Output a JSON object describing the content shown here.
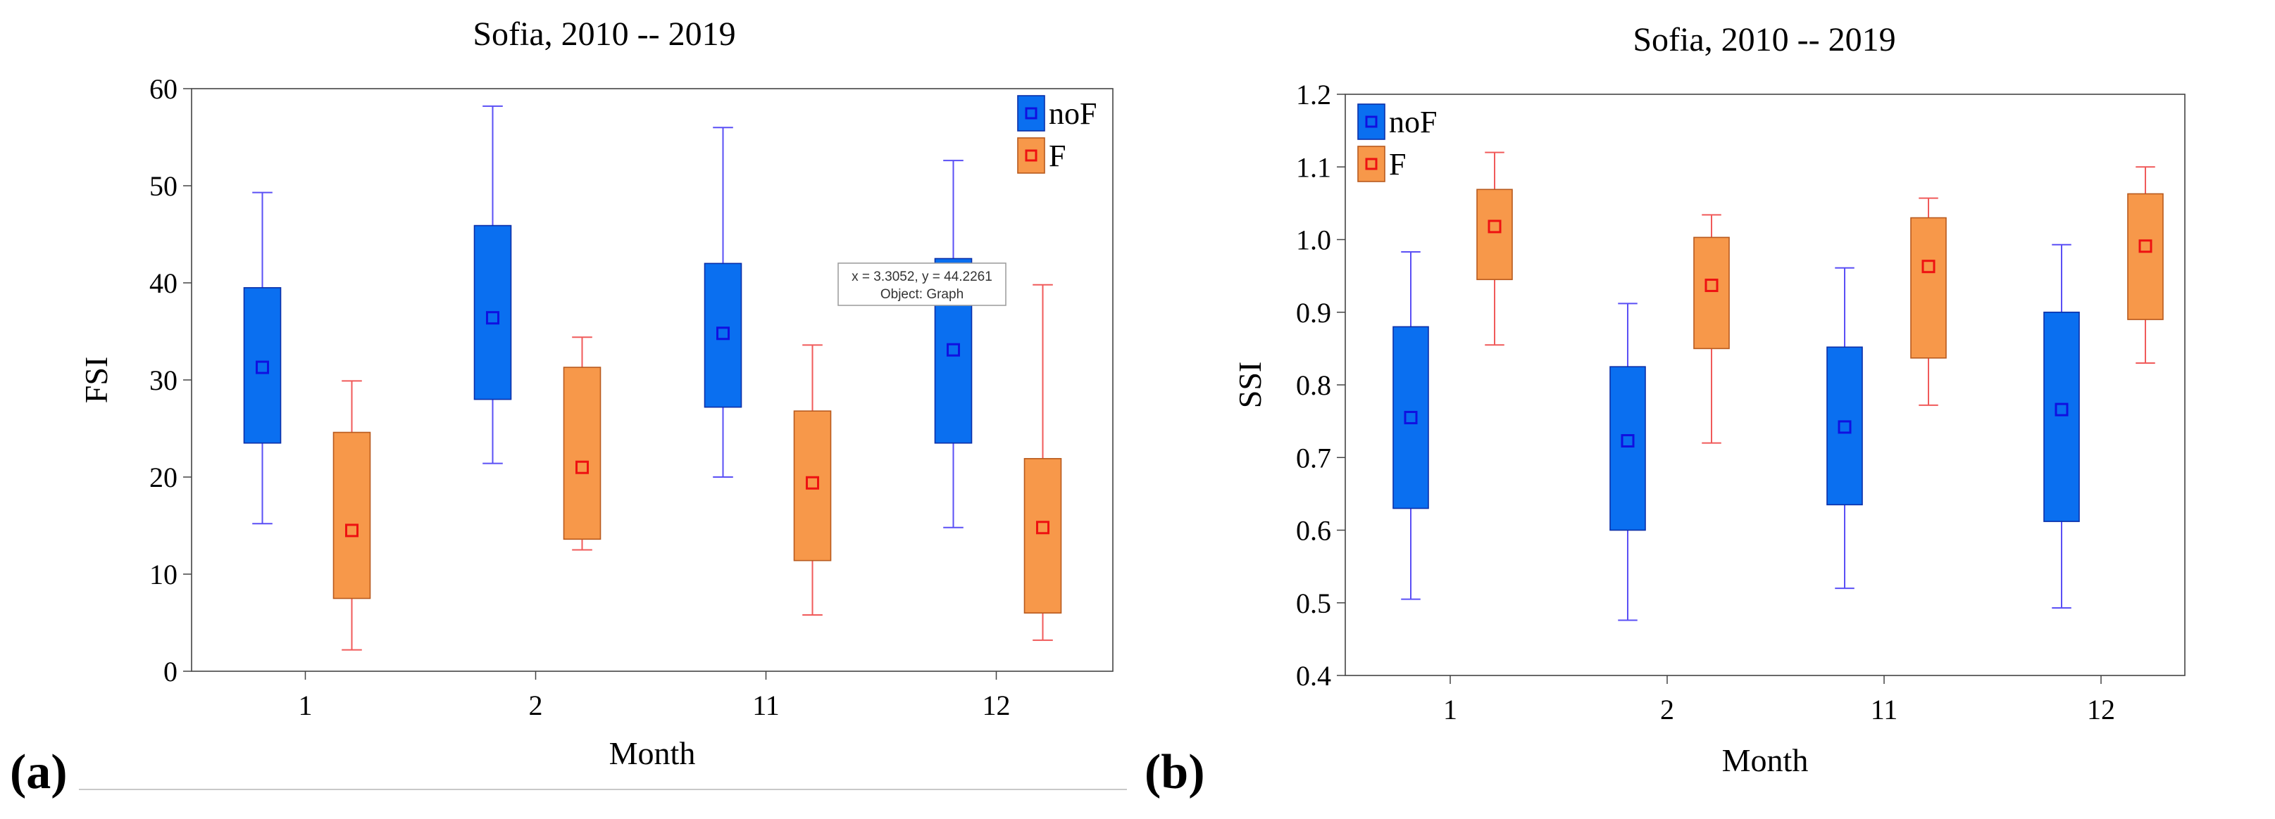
{
  "colors": {
    "noF_fill": "#0a6ff0",
    "noF_edge": "#0b2fa8",
    "noF_whisker": "#5a4ff5",
    "noF_marker": "#1010e0",
    "F_fill": "#f7984a",
    "F_edge": "#b85a1e",
    "F_whisker": "#f05a5a",
    "F_marker": "#ee1111"
  },
  "panels": {
    "a": "(a)",
    "b": "(b)"
  },
  "tooltip": {
    "line1": "x = 3.3052, y = 44.2261",
    "line2": "Object: Graph"
  },
  "chart_data": [
    {
      "id": "a",
      "type": "box",
      "title": "Sofia, 2010 -- 2019",
      "xlabel": "Month",
      "ylabel": "FSI",
      "categories": [
        "1",
        "2",
        "11",
        "12"
      ],
      "ylim": [
        0,
        60
      ],
      "yticks": [
        "0",
        "10",
        "20",
        "30",
        "40",
        "50",
        "60"
      ],
      "legend_position": "top-right",
      "series": [
        {
          "name": "noF",
          "boxes": [
            {
              "min": 15.2,
              "q1": 23.5,
              "mean": 31.3,
              "q3": 39.5,
              "max": 49.3
            },
            {
              "min": 21.4,
              "q1": 28.0,
              "mean": 36.4,
              "q3": 45.9,
              "max": 58.2
            },
            {
              "min": 20.0,
              "q1": 27.2,
              "mean": 34.8,
              "q3": 42.0,
              "max": 56.0
            },
            {
              "min": 14.8,
              "q1": 23.5,
              "mean": 33.1,
              "q3": 42.5,
              "max": 52.6
            }
          ]
        },
        {
          "name": "F",
          "boxes": [
            {
              "min": 2.2,
              "q1": 7.5,
              "mean": 14.5,
              "q3": 24.6,
              "max": 29.9
            },
            {
              "min": 12.5,
              "q1": 13.6,
              "mean": 21.0,
              "q3": 31.3,
              "max": 34.4
            },
            {
              "min": 5.8,
              "q1": 11.4,
              "mean": 19.4,
              "q3": 26.8,
              "max": 33.6
            },
            {
              "min": 3.2,
              "q1": 6.0,
              "mean": 14.8,
              "q3": 21.9,
              "max": 39.8
            }
          ]
        }
      ]
    },
    {
      "id": "b",
      "type": "box",
      "title": "Sofia, 2010 -- 2019",
      "xlabel": "Month",
      "ylabel": "SSI",
      "categories": [
        "1",
        "2",
        "11",
        "12"
      ],
      "ylim": [
        0.4,
        1.2
      ],
      "yticks": [
        "0.4",
        "0.5",
        "0.6",
        "0.7",
        "0.8",
        "0.9",
        "1.0",
        "1.1",
        "1.2"
      ],
      "legend_position": "top-left",
      "series": [
        {
          "name": "noF",
          "boxes": [
            {
              "min": 0.505,
              "q1": 0.63,
              "mean": 0.755,
              "q3": 0.88,
              "max": 0.983
            },
            {
              "min": 0.476,
              "q1": 0.6,
              "mean": 0.723,
              "q3": 0.825,
              "max": 0.912
            },
            {
              "min": 0.52,
              "q1": 0.635,
              "mean": 0.742,
              "q3": 0.852,
              "max": 0.961
            },
            {
              "min": 0.493,
              "q1": 0.612,
              "mean": 0.766,
              "q3": 0.9,
              "max": 0.993
            }
          ]
        },
        {
          "name": "F",
          "boxes": [
            {
              "min": 0.855,
              "q1": 0.945,
              "mean": 1.018,
              "q3": 1.069,
              "max": 1.12
            },
            {
              "min": 0.72,
              "q1": 0.85,
              "mean": 0.937,
              "q3": 1.003,
              "max": 1.034
            },
            {
              "min": 0.772,
              "q1": 0.837,
              "mean": 0.963,
              "q3": 1.03,
              "max": 1.057
            },
            {
              "min": 0.83,
              "q1": 0.89,
              "mean": 0.991,
              "q3": 1.063,
              "max": 1.1
            }
          ]
        }
      ]
    }
  ]
}
